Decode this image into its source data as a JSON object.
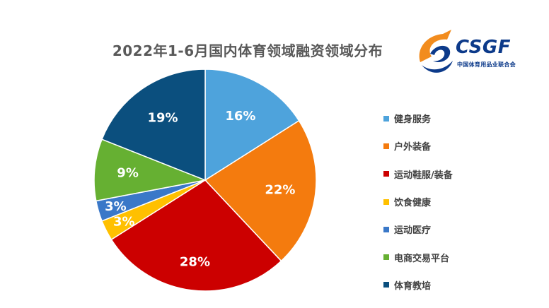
{
  "logo": {
    "text": "CSGF",
    "subtext": "中国体育用品业联合会",
    "colors": {
      "swoosh": "#f28c1e",
      "text": "#0c3a8a"
    }
  },
  "chart_data": {
    "type": "pie",
    "title": "2022年1-6月国内体育领域融资领域分布",
    "legend_position": "right",
    "slices": [
      {
        "name": "健身服务",
        "value": 16,
        "label": "16%",
        "color": "#4ea3dc"
      },
      {
        "name": "户外装备",
        "value": 22,
        "label": "22%",
        "color": "#f47b0e"
      },
      {
        "name": "运动鞋服/装备",
        "value": 28,
        "label": "28%",
        "color": "#cc0000"
      },
      {
        "name": "饮食健康",
        "value": 3,
        "label": "3%",
        "color": "#ffc000"
      },
      {
        "name": "运动医疗",
        "value": 3,
        "label": "3%",
        "color": "#3a78c8"
      },
      {
        "name": "电商交易平台",
        "value": 9,
        "label": "9%",
        "color": "#66b032"
      },
      {
        "name": "体育教培",
        "value": 19,
        "label": "19%",
        "color": "#0b4f7e"
      }
    ]
  }
}
